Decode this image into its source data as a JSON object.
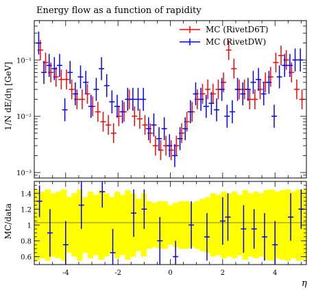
{
  "chart_data": [
    {
      "type": "scatter",
      "title": "Energy flow as a function of rapidity",
      "ylabel": "1/N dE/dη [GeV]",
      "yscale": "log",
      "xlim": [
        -5.2,
        5.2
      ],
      "ylim": [
        0.0008,
        0.5
      ],
      "yticks": [
        0.001,
        0.01,
        0.1
      ],
      "ytick_labels": [
        "10⁻³",
        "10⁻²",
        "10⁻¹"
      ],
      "legend_position": "top-right",
      "series": [
        {
          "name": "MC (RivetD6T)",
          "color": "#ff0000",
          "x": [
            -5.0,
            -4.8,
            -4.6,
            -4.4,
            -4.2,
            -4.0,
            -3.8,
            -3.6,
            -3.4,
            -3.2,
            -3.0,
            -2.8,
            -2.6,
            -2.4,
            -2.2,
            -2.0,
            -1.8,
            -1.6,
            -1.4,
            -1.2,
            -1.0,
            -0.8,
            -0.6,
            -0.4,
            -0.2,
            0.0,
            0.2,
            0.4,
            0.6,
            0.8,
            1.0,
            1.2,
            1.4,
            1.6,
            1.8,
            2.0,
            2.2,
            2.4,
            2.6,
            2.8,
            3.0,
            3.2,
            3.4,
            3.6,
            3.8,
            4.0,
            4.2,
            4.4,
            4.6,
            4.8,
            5.0
          ],
          "y": [
            0.15,
            0.09,
            0.06,
            0.05,
            0.045,
            0.045,
            0.03,
            0.02,
            0.02,
            0.025,
            0.015,
            0.012,
            0.008,
            0.007,
            0.005,
            0.01,
            0.012,
            0.02,
            0.01,
            0.009,
            0.007,
            0.005,
            0.003,
            0.0025,
            0.003,
            0.0025,
            0.003,
            0.005,
            0.008,
            0.012,
            0.02,
            0.025,
            0.03,
            0.025,
            0.03,
            0.04,
            0.15,
            0.07,
            0.03,
            0.03,
            0.02,
            0.02,
            0.03,
            0.04,
            0.05,
            0.09,
            0.12,
            0.1,
            0.06,
            0.03,
            0.02
          ],
          "yerr_rel": 0.5
        },
        {
          "name": "MC (RivetDW)",
          "color": "#0000ff",
          "x": [
            -5.0,
            -4.8,
            -4.6,
            -4.4,
            -4.2,
            -4.0,
            -3.8,
            -3.6,
            -3.4,
            -3.2,
            -3.0,
            -2.8,
            -2.6,
            -2.4,
            -2.2,
            -2.0,
            -1.8,
            -1.6,
            -1.4,
            -1.2,
            -1.0,
            -0.8,
            -0.6,
            -0.4,
            -0.2,
            0.0,
            0.2,
            0.4,
            0.6,
            0.8,
            1.0,
            1.2,
            1.4,
            1.6,
            1.8,
            2.0,
            2.2,
            2.4,
            2.6,
            2.8,
            3.0,
            3.2,
            3.4,
            3.6,
            3.8,
            4.0,
            4.2,
            4.4,
            4.6,
            4.8,
            5.0
          ],
          "y": [
            0.2,
            0.06,
            0.08,
            0.07,
            0.08,
            0.013,
            0.06,
            0.025,
            0.05,
            0.04,
            0.015,
            0.03,
            0.07,
            0.035,
            0.018,
            0.015,
            0.012,
            0.02,
            0.02,
            0.02,
            0.02,
            0.006,
            0.007,
            0.004,
            0.006,
            0.003,
            0.002,
            0.004,
            0.006,
            0.012,
            0.025,
            0.02,
            0.015,
            0.017,
            0.013,
            0.03,
            0.01,
            0.012,
            0.03,
            0.025,
            0.03,
            0.04,
            0.045,
            0.025,
            0.04,
            0.01,
            0.05,
            0.08,
            0.08,
            0.1,
            0.1
          ],
          "yerr_rel": 0.6
        }
      ]
    },
    {
      "type": "scatter",
      "ylabel": "MC/data",
      "xlabel": "η",
      "xlim": [
        -5.2,
        5.2
      ],
      "ylim": [
        0.5,
        1.55
      ],
      "xticks": [
        -4,
        -2,
        0,
        2,
        4
      ],
      "xtick_labels": [
        "-4",
        "-2",
        "0",
        "2",
        "4"
      ],
      "yticks": [
        0.6,
        0.8,
        1.0,
        1.2,
        1.4
      ],
      "ytick_labels": [
        "0.6",
        "0.8",
        "1",
        "1.2",
        "1.4"
      ],
      "band_color": "#ffff00",
      "band_halfwidth": [
        0.45,
        0.42,
        0.45,
        0.4,
        0.42,
        0.45,
        0.35,
        0.4,
        0.45,
        0.35,
        0.42,
        0.38,
        0.44,
        0.4,
        0.35,
        0.42,
        0.38,
        0.44,
        0.4,
        0.33,
        0.4,
        0.3,
        0.28,
        0.3,
        0.3,
        0.25,
        0.28,
        0.3,
        0.3,
        0.28,
        0.3,
        0.33,
        0.35,
        0.4,
        0.38,
        0.42,
        0.4,
        0.42,
        0.38,
        0.44,
        0.4,
        0.42,
        0.4,
        0.44,
        0.45,
        0.42,
        0.44,
        0.45,
        0.42,
        0.45,
        0.44
      ],
      "series": [
        {
          "name": "MC (RivetDW)",
          "color": "#0000ff",
          "x": [
            -5.0,
            -4.6,
            -4.0,
            -3.4,
            -2.6,
            -2.2,
            -1.4,
            -1.0,
            -0.4,
            0.2,
            0.8,
            1.4,
            2.0,
            2.2,
            2.8,
            3.2,
            3.6,
            4.0,
            4.6,
            5.0
          ],
          "y": [
            1.3,
            0.9,
            0.75,
            1.25,
            1.42,
            0.65,
            1.15,
            1.2,
            0.8,
            0.6,
            1.0,
            0.85,
            1.05,
            1.1,
            0.95,
            0.95,
            0.85,
            0.75,
            1.1,
            1.2
          ],
          "yerr": [
            0.2,
            0.3,
            0.3,
            0.3,
            0.2,
            0.3,
            0.3,
            0.25,
            0.3,
            0.2,
            0.3,
            0.3,
            0.3,
            0.3,
            0.3,
            0.25,
            0.3,
            0.3,
            0.3,
            0.25
          ]
        }
      ]
    }
  ]
}
